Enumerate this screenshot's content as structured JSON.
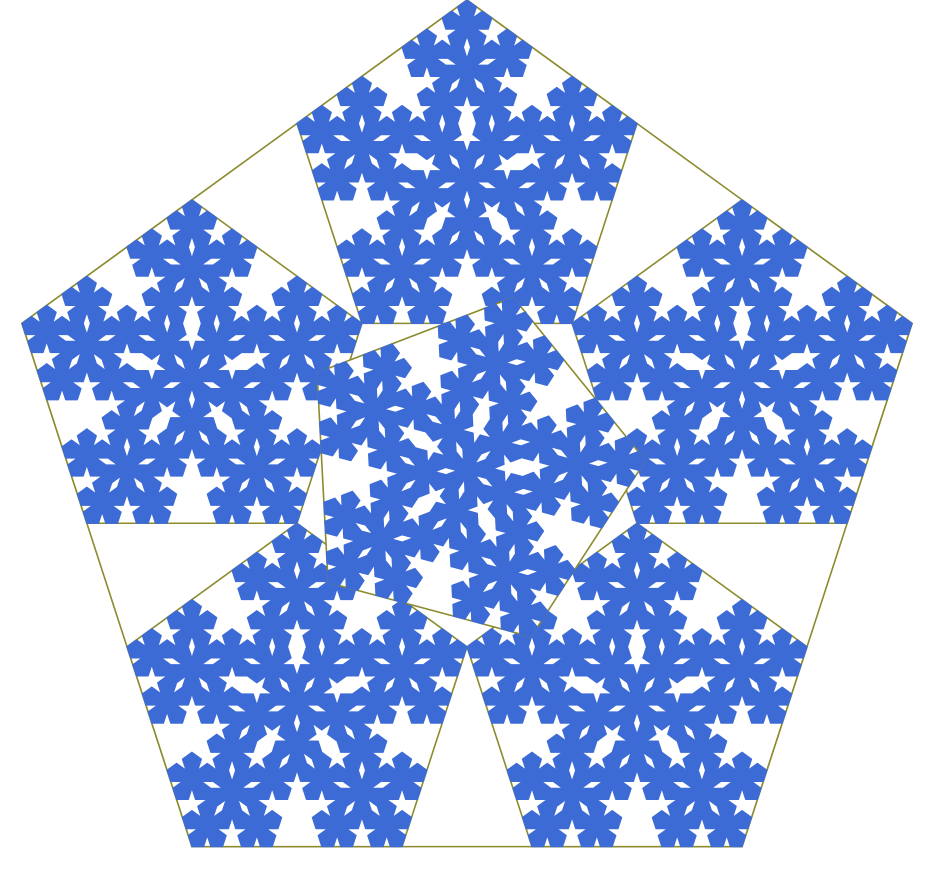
{
  "figure": {
    "subject": "pentaflake-fractal",
    "colors": {
      "background": "#ffffff",
      "outline": "#8b8b2e",
      "fill": "#3d6bd6"
    },
    "sub_pentagon_count": 6,
    "recursion_depth": 3,
    "center_rotation_deg": 15
  }
}
